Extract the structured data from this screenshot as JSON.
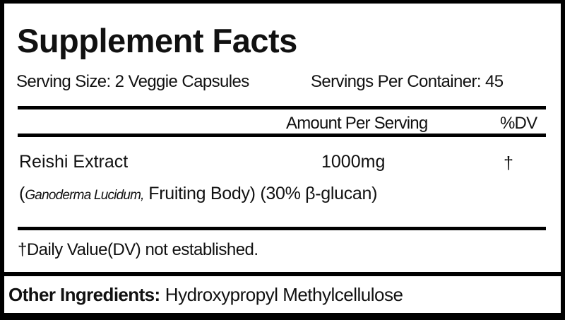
{
  "title": "Supplement Facts",
  "serving_size": "Serving Size: 2 Veggie Capsules",
  "servings_per_container": "Servings Per Container: 45",
  "header": {
    "amount": "Amount Per Serving",
    "dv": "%DV"
  },
  "ingredient": {
    "name": "Reishi Extract",
    "amount": "1000mg",
    "dv": "†",
    "source_italic": "Ganoderma Lucidum,",
    "detail_open": "(",
    "detail_rest": " Fruiting Body) (30% β-glucan)"
  },
  "footnote": "†Daily Value(DV) not established.",
  "other_ingredients": {
    "label": "Other Ingredients:",
    "value": "Hydroxypropyl Methylcellulose"
  }
}
